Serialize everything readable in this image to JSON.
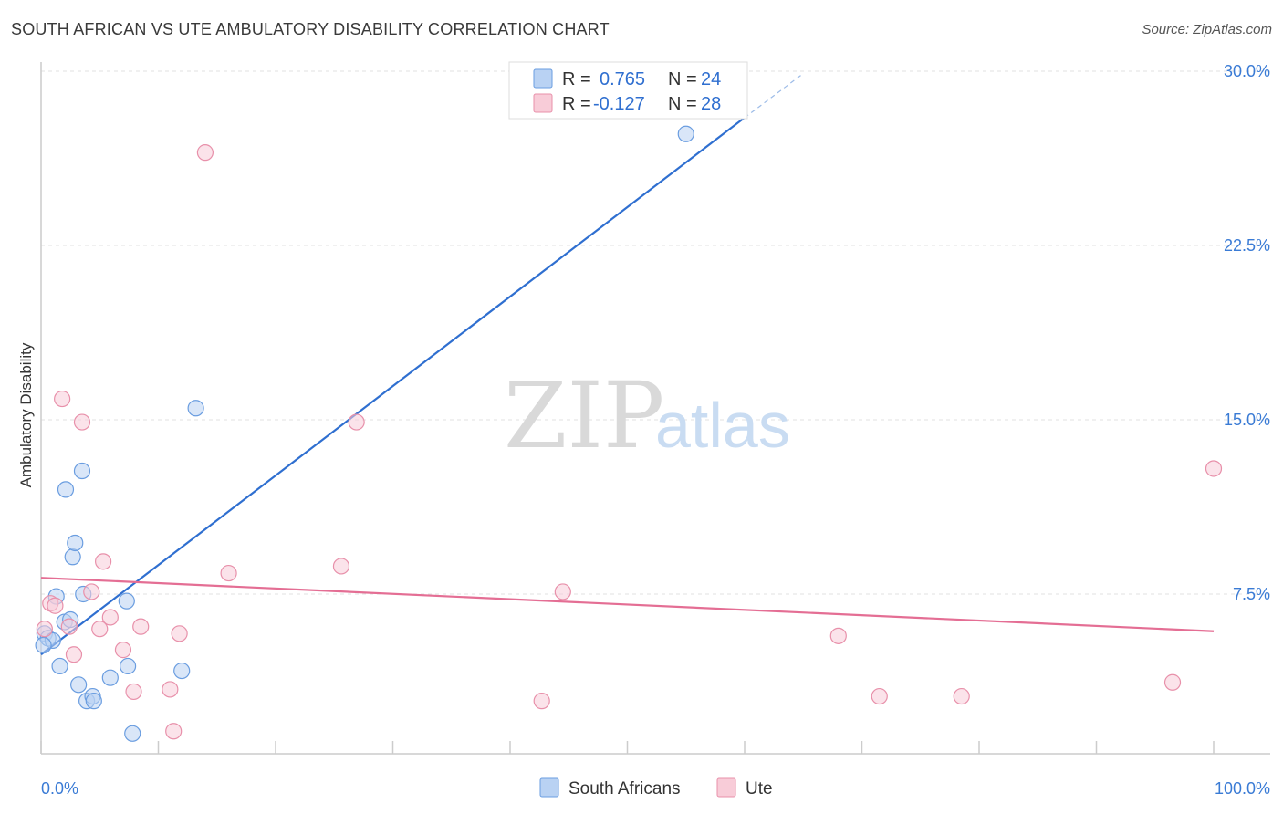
{
  "header": {
    "title": "SOUTH AFRICAN VS UTE AMBULATORY DISABILITY CORRELATION CHART",
    "source": "Source: ZipAtlas.com"
  },
  "watermark": {
    "zip": "ZIP",
    "atlas": "atlas"
  },
  "legend": {
    "rows": [
      {
        "r_label": "R = ",
        "r_value": "0.765",
        "n_label": "N = ",
        "n_value": "24",
        "color": "#a9c8f0"
      },
      {
        "r_label": "R = ",
        "r_value": "-0.127",
        "n_label": "N = ",
        "n_value": "28",
        "color": "#f4b8c8"
      }
    ]
  },
  "chart_data": {
    "type": "scatter",
    "title": "SOUTH AFRICAN VS UTE AMBULATORY DISABILITY CORRELATION CHART",
    "xlabel": "",
    "ylabel": "Ambulatory Disability",
    "xlim": [
      0,
      100
    ],
    "ylim": [
      0,
      30
    ],
    "y_ticks": [
      {
        "value": 7.5,
        "label": "7.5%"
      },
      {
        "value": 15.0,
        "label": "15.0%"
      },
      {
        "value": 22.5,
        "label": "22.5%"
      },
      {
        "value": 30.0,
        "label": "30.0%"
      }
    ],
    "x_ticks": [
      {
        "value": 0,
        "label": "0.0%"
      },
      {
        "value": 100,
        "label": "100.0%"
      }
    ],
    "grid": true,
    "legend_position": "top-center",
    "series": [
      {
        "name": "South Africans",
        "color": "#6a9de0",
        "fill": "#b9d2f3",
        "trend": {
          "x0": 0,
          "y0": 4.9,
          "x1": 60,
          "y1": 28.0,
          "dashed_to_x": 65,
          "dashed_to_y": 29.9
        },
        "points": [
          [
            0.3,
            5.8
          ],
          [
            0.6,
            5.6
          ],
          [
            1.0,
            5.5
          ],
          [
            1.3,
            7.4
          ],
          [
            1.6,
            4.4
          ],
          [
            2.0,
            6.3
          ],
          [
            2.1,
            12.0
          ],
          [
            2.5,
            6.4
          ],
          [
            2.7,
            9.1
          ],
          [
            2.9,
            9.7
          ],
          [
            3.2,
            3.6
          ],
          [
            3.5,
            12.8
          ],
          [
            3.6,
            7.5
          ],
          [
            3.9,
            2.9
          ],
          [
            4.4,
            3.1
          ],
          [
            4.5,
            2.9
          ],
          [
            5.9,
            3.9
          ],
          [
            7.3,
            7.2
          ],
          [
            7.4,
            4.4
          ],
          [
            7.8,
            1.5
          ],
          [
            12.0,
            4.2
          ],
          [
            13.2,
            15.5
          ],
          [
            55.0,
            27.3
          ],
          [
            0.2,
            5.3
          ]
        ]
      },
      {
        "name": "Ute",
        "color": "#e890aa",
        "fill": "#f8ccd8",
        "trend": {
          "x0": 0,
          "y0": 8.2,
          "x1": 100,
          "y1": 5.9
        },
        "points": [
          [
            0.3,
            6.0
          ],
          [
            0.8,
            7.1
          ],
          [
            1.2,
            7.0
          ],
          [
            1.8,
            15.9
          ],
          [
            2.4,
            6.1
          ],
          [
            2.8,
            4.9
          ],
          [
            3.5,
            14.9
          ],
          [
            4.3,
            7.6
          ],
          [
            5.0,
            6.0
          ],
          [
            5.3,
            8.9
          ],
          [
            5.9,
            6.5
          ],
          [
            7.0,
            5.1
          ],
          [
            7.9,
            3.3
          ],
          [
            8.5,
            6.1
          ],
          [
            11.0,
            3.4
          ],
          [
            11.3,
            1.6
          ],
          [
            11.8,
            5.8
          ],
          [
            14.0,
            26.5
          ],
          [
            16.0,
            8.4
          ],
          [
            25.6,
            8.7
          ],
          [
            26.9,
            14.9
          ],
          [
            42.7,
            2.9
          ],
          [
            44.5,
            7.6
          ],
          [
            68.0,
            5.7
          ],
          [
            71.5,
            3.1
          ],
          [
            78.5,
            3.1
          ],
          [
            96.5,
            3.7
          ],
          [
            100.0,
            12.9
          ]
        ]
      }
    ]
  }
}
